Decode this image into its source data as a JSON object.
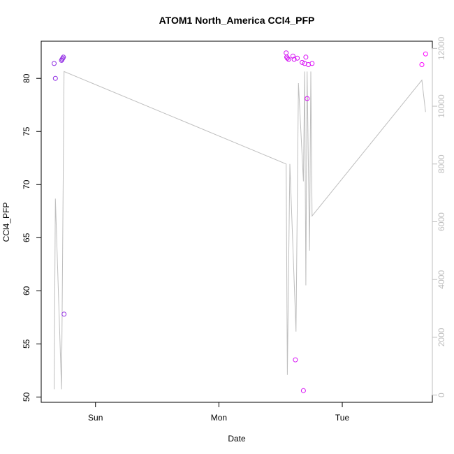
{
  "chart_data": {
    "type": "scatter",
    "title": "ATOM1 North_America CCl4_PFP",
    "xlabel": "Date",
    "ylabel": "CCl4_PFP",
    "x_ticks": [
      {
        "day": 1,
        "label": "Sun"
      },
      {
        "day": 2,
        "label": "Mon"
      },
      {
        "day": 3,
        "label": "Tue"
      }
    ],
    "x_range_days": [
      0.56,
      3.73
    ],
    "ylim": [
      49.5,
      83.5
    ],
    "y_ticks": [
      50,
      55,
      60,
      65,
      70,
      75,
      80
    ],
    "y2lim": [
      -250,
      12250
    ],
    "y2_ticks": [
      0,
      2000,
      4000,
      6000,
      8000,
      10000,
      12000
    ],
    "colors": {
      "points_start": "#8a2be2",
      "points_end": "#ff00ff",
      "altitude_line": "#bebebe",
      "axes": "#000000"
    },
    "series": [
      {
        "kind": "points",
        "points": [
          {
            "x": 0.665,
            "y": 81.4
          },
          {
            "x": 0.675,
            "y": 80.0
          },
          {
            "x": 0.725,
            "y": 81.7
          },
          {
            "x": 0.73,
            "y": 81.8
          },
          {
            "x": 0.735,
            "y": 81.9
          },
          {
            "x": 0.74,
            "y": 82.0
          },
          {
            "x": 0.745,
            "y": 57.8
          },
          {
            "x": 2.545,
            "y": 82.4
          },
          {
            "x": 2.55,
            "y": 82.0
          },
          {
            "x": 2.555,
            "y": 81.9
          },
          {
            "x": 2.565,
            "y": 81.8
          },
          {
            "x": 2.6,
            "y": 82.1
          },
          {
            "x": 2.61,
            "y": 81.8
          },
          {
            "x": 2.62,
            "y": 53.5
          },
          {
            "x": 2.635,
            "y": 81.9
          },
          {
            "x": 2.675,
            "y": 81.5
          },
          {
            "x": 2.685,
            "y": 50.6
          },
          {
            "x": 2.695,
            "y": 81.4
          },
          {
            "x": 2.705,
            "y": 82.0
          },
          {
            "x": 2.715,
            "y": 78.1
          },
          {
            "x": 2.725,
            "y": 81.3
          },
          {
            "x": 2.755,
            "y": 81.4
          },
          {
            "x": 3.645,
            "y": 81.3
          },
          {
            "x": 3.675,
            "y": 82.3
          }
        ]
      },
      {
        "kind": "altitude-line",
        "points": [
          {
            "x": 0.665,
            "y": 200
          },
          {
            "x": 0.675,
            "y": 6800
          },
          {
            "x": 0.725,
            "y": 200
          },
          {
            "x": 0.745,
            "y": 11200
          },
          {
            "x": 2.545,
            "y": 8000
          },
          {
            "x": 2.555,
            "y": 700
          },
          {
            "x": 2.575,
            "y": 8000
          },
          {
            "x": 2.625,
            "y": 2200
          },
          {
            "x": 2.645,
            "y": 10800
          },
          {
            "x": 2.685,
            "y": 7400
          },
          {
            "x": 2.695,
            "y": 11200
          },
          {
            "x": 2.705,
            "y": 3800
          },
          {
            "x": 2.715,
            "y": 11200
          },
          {
            "x": 2.735,
            "y": 5000
          },
          {
            "x": 2.745,
            "y": 11200
          },
          {
            "x": 2.755,
            "y": 6200
          },
          {
            "x": 3.645,
            "y": 10900
          },
          {
            "x": 3.675,
            "y": 9800
          }
        ]
      }
    ]
  }
}
